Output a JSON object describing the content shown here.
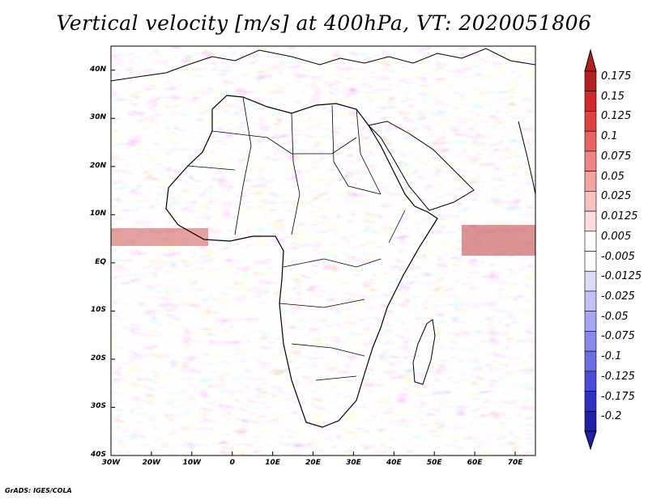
{
  "title": "Vertical velocity [m/s] at 400hPa, VT: 2020051806",
  "map": {
    "variable": "Vertical velocity",
    "units": "m/s",
    "level": "400hPa",
    "valid_time": "2020051806",
    "region": "Africa",
    "lat_range": [
      -40,
      45
    ],
    "lon_range": [
      -30,
      75
    ],
    "lat_labels": [
      "40N",
      "30N",
      "20N",
      "10N",
      "EQ",
      "10S",
      "20S",
      "30S",
      "40S"
    ],
    "lat_values": [
      40,
      30,
      20,
      10,
      0,
      -10,
      -20,
      -30,
      -40
    ],
    "lon_labels": [
      "30W",
      "20W",
      "10W",
      "0",
      "10E",
      "20E",
      "30E",
      "40E",
      "50E",
      "60E",
      "70E"
    ],
    "lon_values": [
      -30,
      -20,
      -10,
      0,
      10,
      20,
      30,
      40,
      50,
      60,
      70
    ]
  },
  "colorbar": {
    "labels": [
      "0.175",
      "0.15",
      "0.125",
      "0.1",
      "0.075",
      "0.05",
      "0.025",
      "0.0125",
      "0.005",
      "-0.005",
      "-0.0125",
      "-0.025",
      "-0.05",
      "-0.075",
      "-0.1",
      "-0.125",
      "-0.175",
      "-0.2"
    ],
    "colors": [
      "#b41f22",
      "#d02a2a",
      "#e04242",
      "#ea6262",
      "#f08484",
      "#f5a4a4",
      "#f9c2c2",
      "#fcdcdc",
      "#ffffff",
      "#ffffff",
      "#dcdcfa",
      "#c2c2f7",
      "#a6a6f2",
      "#8a8aec",
      "#6c6ce4",
      "#4c4cd8",
      "#3030c4",
      "#1f1fa8"
    ]
  },
  "credit": "GrADS: IGES/COLA"
}
